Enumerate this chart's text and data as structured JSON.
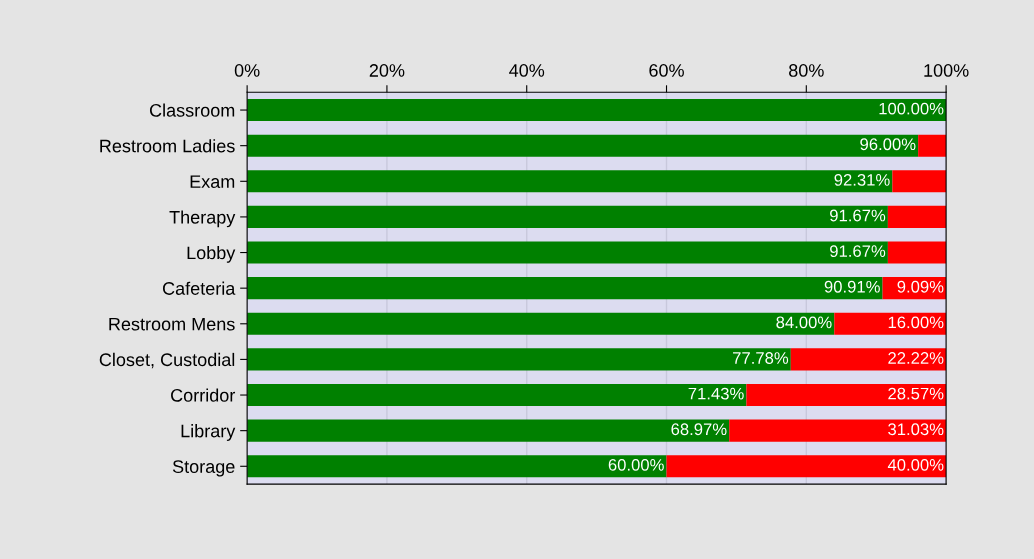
{
  "chart_data": {
    "type": "bar",
    "orientation": "horizontal",
    "stacked": true,
    "categories": [
      "Classroom",
      "Restroom Ladies",
      "Exam",
      "Therapy",
      "Lobby",
      "Cafeteria",
      "Restroom Mens",
      "Closet, Custodial",
      "Corridor",
      "Library",
      "Storage"
    ],
    "series": [
      {
        "color": "#008000",
        "values": [
          100,
          96,
          92.31,
          91.67,
          91.67,
          90.91,
          84,
          77.78,
          71.43,
          68.97,
          60
        ],
        "value_labels": [
          "100.00%",
          "96.00%",
          "92.31%",
          "91.67%",
          "91.67%",
          "90.91%",
          "84.00%",
          "77.78%",
          "71.43%",
          "68.97%",
          "60.00%"
        ]
      },
      {
        "color": "#ff0000",
        "values": [
          0,
          4,
          7.69,
          8.33,
          8.33,
          9.09,
          16,
          22.22,
          28.57,
          31.03,
          40
        ],
        "value_labels": [
          null,
          null,
          null,
          null,
          null,
          "9.09%",
          "16.00%",
          "22.22%",
          "28.57%",
          "31.03%",
          "40.00%"
        ]
      }
    ],
    "xlim": [
      0,
      100
    ],
    "xticks": [
      {
        "value": 0,
        "label": "0%"
      },
      {
        "value": 20,
        "label": "20%"
      },
      {
        "value": 40,
        "label": "40%"
      },
      {
        "value": 60,
        "label": "60%"
      },
      {
        "value": 80,
        "label": "80%"
      },
      {
        "value": 100,
        "label": "100%"
      }
    ],
    "grid": "x",
    "legend": false
  }
}
